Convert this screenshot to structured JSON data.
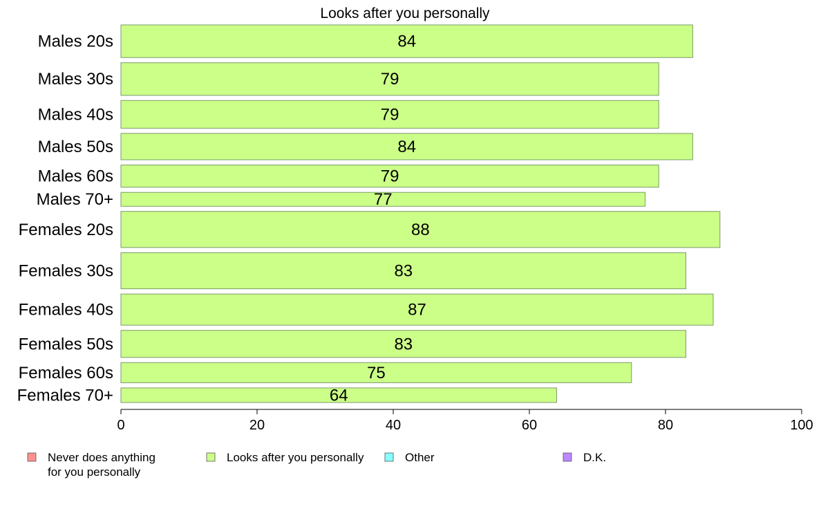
{
  "chart_data": {
    "type": "bar",
    "orientation": "horizontal",
    "title": "Looks after you personally",
    "categories": [
      "Males 20s",
      "Males 30s",
      "Males 40s",
      "Males 50s",
      "Males 60s",
      "Males 70+",
      "Females 20s",
      "Females 30s",
      "Females 40s",
      "Females 50s",
      "Females 60s",
      "Females 70+"
    ],
    "values": [
      84,
      79,
      79,
      84,
      79,
      77,
      88,
      83,
      87,
      83,
      75,
      64
    ],
    "bar_weights": [
      47,
      47,
      40,
      38,
      32,
      20,
      52,
      52,
      45,
      39,
      29,
      21
    ],
    "xlim": [
      0,
      100
    ],
    "xticks": [
      0,
      20,
      40,
      60,
      80,
      100
    ],
    "grid": false,
    "bar_color": "#ccff88",
    "legend": {
      "placement": "bottom",
      "items": [
        {
          "label_lines": [
            "Never does anything",
            "for you personally"
          ],
          "color": "#ff9090"
        },
        {
          "label_lines": [
            "Looks after you personally"
          ],
          "color": "#ccff88"
        },
        {
          "label_lines": [
            "Other"
          ],
          "color": "#88ffff"
        },
        {
          "label_lines": [
            "D.K."
          ],
          "color": "#bb88ff"
        }
      ]
    }
  }
}
